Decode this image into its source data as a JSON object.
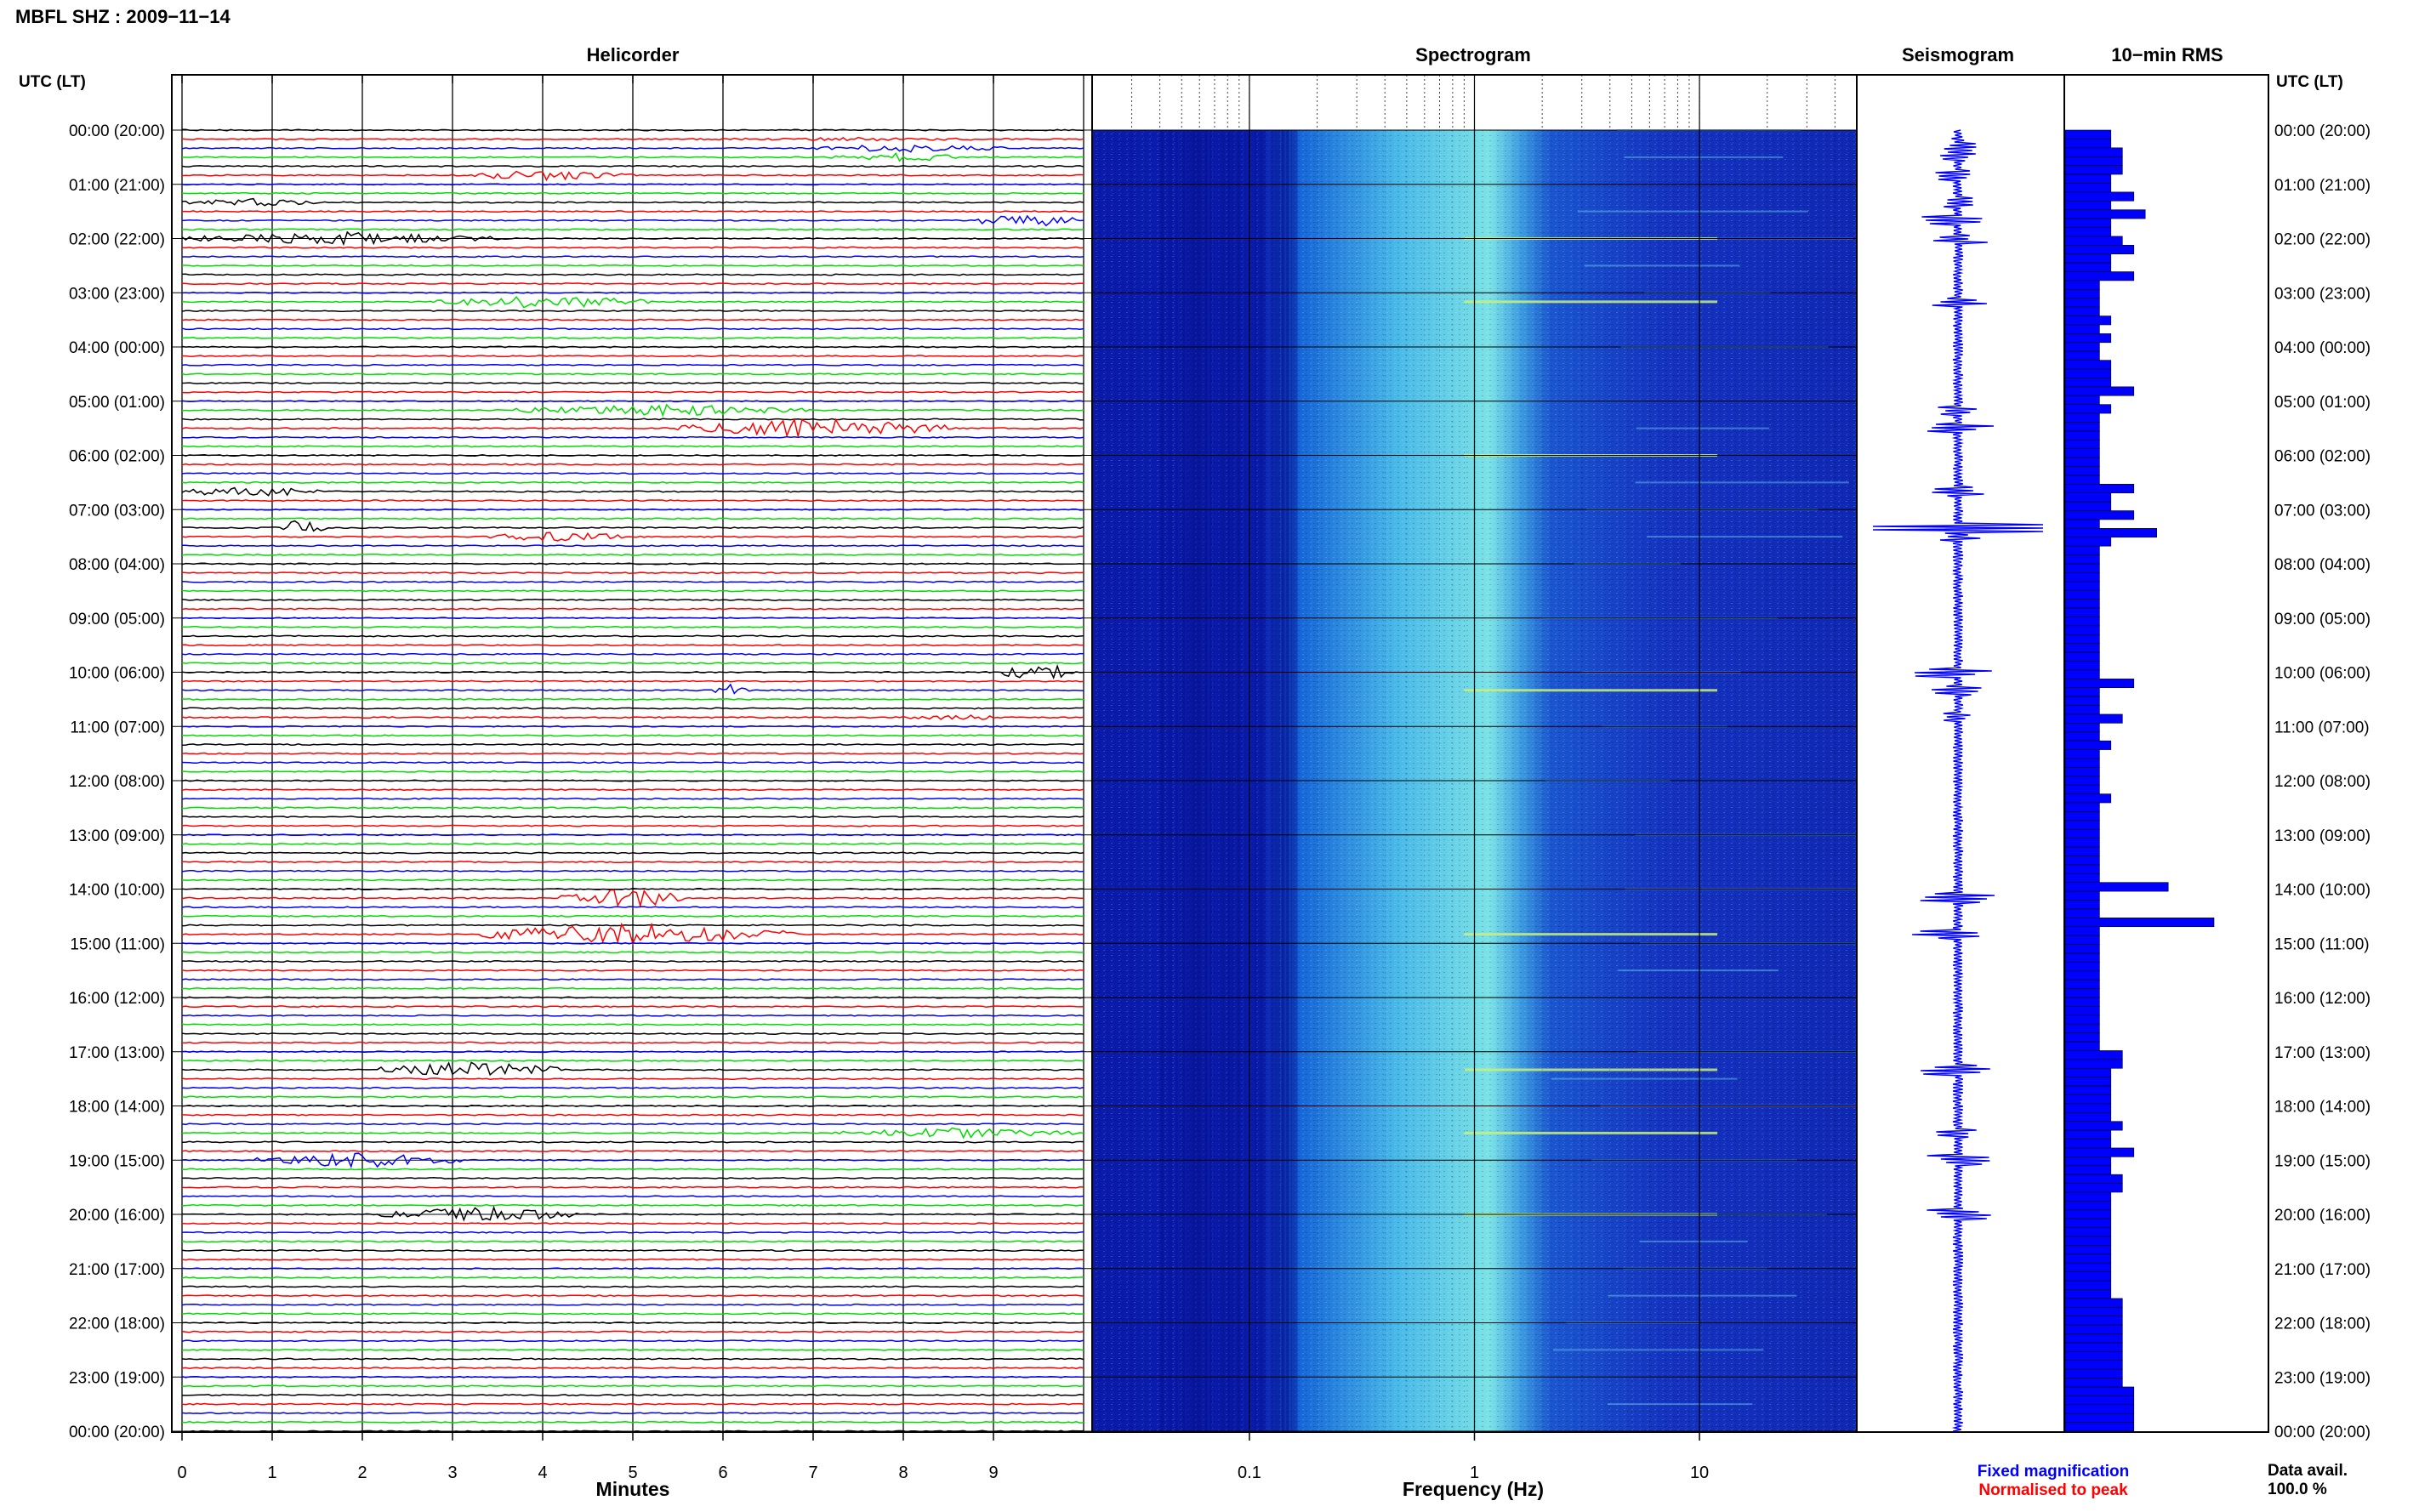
{
  "header": {
    "title": "MBFL SHZ : 2009−11−14"
  },
  "panels": {
    "helicorder": "Helicorder",
    "spectrogram": "Spectrogram",
    "seismogram": "Seismogram",
    "rms": "10−min RMS"
  },
  "axes": {
    "time_label_left": "UTC (LT)",
    "time_label_right": "UTC (LT)",
    "minutes_label": "Minutes",
    "frequency_label": "Frequency (Hz)"
  },
  "legend": {
    "fixed": "Fixed magnification",
    "normalised": "Normalised to peak",
    "fixed_color": "#0000ff",
    "normalised_color": "#ff0000"
  },
  "data_availability": {
    "label": "Data avail.",
    "value": "100.0 %"
  },
  "colors": {
    "trace_cycle": [
      "#000000",
      "#ff0000",
      "#0000ff",
      "#00dd00"
    ],
    "spectrogram_low": "#0a1fb4",
    "spectrogram_high": "#7fe6e6",
    "seismogram": "#0000ff",
    "rms_bar": "#0000ff"
  },
  "chart_data": [
    {
      "type": "line",
      "name": "Helicorder",
      "xlabel": "Minutes",
      "ylabel": "UTC (LT)",
      "xlim": [
        0,
        10
      ],
      "x_ticks": [
        0,
        1,
        2,
        3,
        4,
        5,
        6,
        7,
        8,
        9
      ],
      "y_ticks": [
        "00:00 (20:00)",
        "01:00 (21:00)",
        "02:00 (22:00)",
        "03:00 (23:00)",
        "04:00 (00:00)",
        "05:00 (01:00)",
        "06:00 (02:00)",
        "07:00 (03:00)",
        "08:00 (04:00)",
        "09:00 (05:00)",
        "10:00 (06:00)",
        "11:00 (07:00)",
        "12:00 (08:00)",
        "13:00 (09:00)",
        "14:00 (10:00)",
        "15:00 (11:00)",
        "16:00 (12:00)",
        "17:00 (13:00)",
        "18:00 (14:00)",
        "19:00 (15:00)",
        "20:00 (16:00)",
        "21:00 (17:00)",
        "22:00 (18:00)",
        "23:00 (19:00)",
        "00:00 (20:00)"
      ],
      "traces_per_hour": 6,
      "events": [
        {
          "trace": 1,
          "start": 5.5,
          "end": 9.5,
          "amp": 2
        },
        {
          "trace": 2,
          "start": 7.0,
          "end": 9.2,
          "amp": 5
        },
        {
          "trace": 3,
          "start": 7.2,
          "end": 8.8,
          "amp": 5
        },
        {
          "trace": 5,
          "start": 3.0,
          "end": 5.0,
          "amp": 6
        },
        {
          "trace": 8,
          "start": 0.0,
          "end": 1.5,
          "amp": 5
        },
        {
          "trace": 10,
          "start": 8.8,
          "end": 9.9,
          "amp": 10
        },
        {
          "trace": 12,
          "start": 0.0,
          "end": 3.5,
          "amp": 8
        },
        {
          "trace": 19,
          "start": 2.8,
          "end": 5.2,
          "amp": 8
        },
        {
          "trace": 31,
          "start": 3.7,
          "end": 7.0,
          "amp": 7
        },
        {
          "trace": 33,
          "start": 5.5,
          "end": 8.5,
          "amp": 12
        },
        {
          "trace": 40,
          "start": 0.0,
          "end": 1.5,
          "amp": 7
        },
        {
          "trace": 44,
          "start": 1.1,
          "end": 1.6,
          "amp": 14
        },
        {
          "trace": 45,
          "start": 3.3,
          "end": 5.0,
          "amp": 6
        },
        {
          "trace": 60,
          "start": 9.1,
          "end": 9.9,
          "amp": 12
        },
        {
          "trace": 62,
          "start": 5.9,
          "end": 6.3,
          "amp": 8
        },
        {
          "trace": 65,
          "start": 8.0,
          "end": 9.0,
          "amp": 5
        },
        {
          "trace": 85,
          "start": 4.2,
          "end": 5.6,
          "amp": 12
        },
        {
          "trace": 89,
          "start": 3.3,
          "end": 6.8,
          "amp": 13
        },
        {
          "trace": 104,
          "start": 2.2,
          "end": 4.2,
          "amp": 10
        },
        {
          "trace": 111,
          "start": 7.2,
          "end": 9.9,
          "amp": 6
        },
        {
          "trace": 114,
          "start": 0.8,
          "end": 3.2,
          "amp": 9
        },
        {
          "trace": 120,
          "start": 2.2,
          "end": 4.4,
          "amp": 9
        }
      ]
    },
    {
      "type": "heatmap",
      "name": "Spectrogram",
      "xlabel": "Frequency (Hz)",
      "xscale": "log",
      "xlim": [
        0.02,
        50
      ],
      "x_ticks": [
        0.1,
        1,
        10
      ]
    },
    {
      "type": "line",
      "name": "Seismogram",
      "color": "#0000ff"
    },
    {
      "type": "bar",
      "name": "10−min RMS",
      "orientation": "horizontal",
      "values": [
        4,
        4,
        5,
        5,
        5,
        4,
        4,
        6,
        4,
        7,
        4,
        4,
        5,
        6,
        4,
        4,
        6,
        3,
        3,
        3,
        3,
        4,
        3,
        4,
        3,
        3,
        4,
        4,
        4,
        6,
        3,
        4,
        3,
        3,
        3,
        3,
        3,
        3,
        3,
        3,
        6,
        4,
        4,
        6,
        3,
        8,
        4,
        3,
        3,
        3,
        3,
        3,
        3,
        3,
        3,
        3,
        3,
        3,
        3,
        3,
        3,
        3,
        6,
        3,
        3,
        3,
        5,
        3,
        3,
        4,
        3,
        3,
        3,
        3,
        3,
        4,
        3,
        3,
        3,
        3,
        3,
        3,
        3,
        3,
        3,
        9,
        3,
        3,
        3,
        13,
        3,
        3,
        3,
        3,
        3,
        3,
        3,
        3,
        3,
        3,
        3,
        3,
        3,
        3,
        5,
        5,
        4,
        4,
        4,
        4,
        4,
        4,
        5,
        4,
        4,
        6,
        4,
        4,
        5,
        5,
        4,
        4,
        4,
        4,
        4,
        4,
        4,
        4,
        4,
        4,
        4,
        4,
        5,
        5,
        5,
        5,
        5,
        5,
        5,
        5,
        5,
        5,
        6,
        6,
        6,
        6,
        6
      ]
    }
  ]
}
